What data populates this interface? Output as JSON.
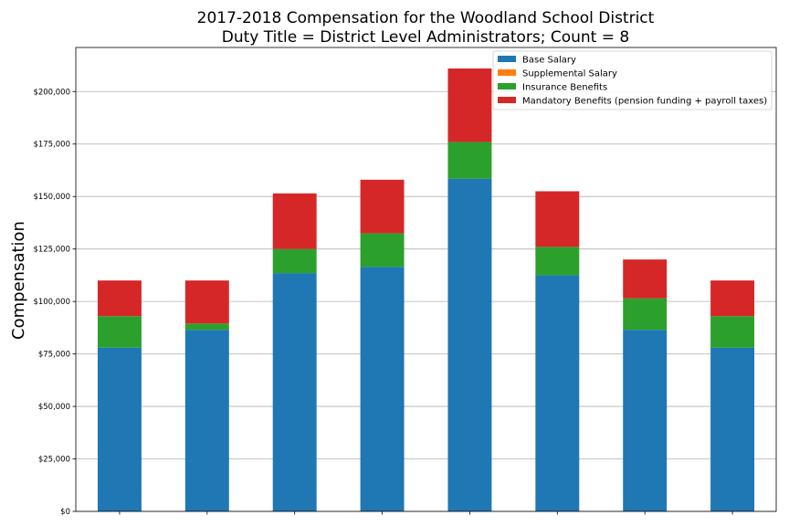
{
  "chart_data": {
    "type": "bar",
    "stacked": true,
    "title": "2017-2018 Compensation for the Woodland School District",
    "subtitle": "Duty Title = District Level Administrators; Count = 8",
    "xlabel": "",
    "ylabel": "Compensation",
    "ylim": [
      0,
      221000
    ],
    "yticks": [
      0,
      25000,
      50000,
      75000,
      100000,
      125000,
      150000,
      175000,
      200000
    ],
    "ytick_labels": [
      "$0",
      "$25,000",
      "$50,000",
      "$75,000",
      "$100,000",
      "$125,000",
      "$150,000",
      "$175,000",
      "$200,000"
    ],
    "grid": true,
    "legend_position": "top-right",
    "categories": [
      "",
      "",
      "",
      "",
      "",
      "",
      "",
      ""
    ],
    "series": [
      {
        "name": "Base Salary",
        "color": "#1f77b4",
        "values": [
          78000,
          86500,
          113500,
          116500,
          158500,
          112500,
          86500,
          78000
        ]
      },
      {
        "name": "Supplemental Salary",
        "color": "#ff7f0e",
        "values": [
          0,
          0,
          0,
          0,
          0,
          0,
          0,
          0
        ]
      },
      {
        "name": "Insurance Benefits",
        "color": "#2ca02c",
        "values": [
          15000,
          3000,
          11500,
          16000,
          17500,
          13500,
          15000,
          15000
        ]
      },
      {
        "name": "Mandatory Benefits (pension funding + payroll taxes)",
        "color": "#d62728",
        "values": [
          17000,
          20500,
          26500,
          25500,
          35000,
          26500,
          18500,
          17000
        ]
      }
    ]
  }
}
